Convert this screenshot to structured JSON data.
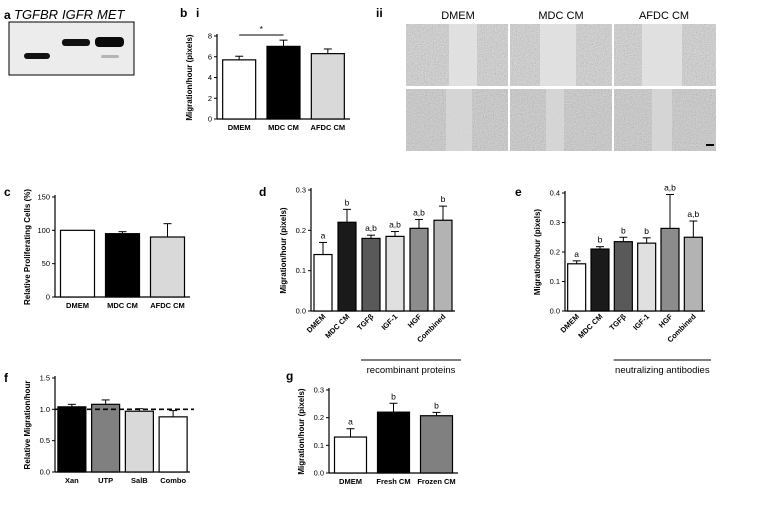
{
  "panel_a": {
    "label": "a",
    "genes": [
      "TGFBR",
      "IGFR",
      "MET"
    ]
  },
  "panel_b": {
    "label": "b",
    "sub_i": "i",
    "sub_ii": "ii",
    "conditions": [
      "DMEM",
      "MDC CM",
      "AFDC CM"
    ]
  },
  "chart_data": [
    {
      "id": "bi",
      "type": "bar",
      "categories": [
        "DMEM",
        "MDC CM",
        "AFDC CM"
      ],
      "values": [
        5.7,
        7.0,
        6.3
      ],
      "errors": [
        0.35,
        0.6,
        0.45
      ],
      "colors": [
        "#ffffff",
        "#000000",
        "#d9d9d9"
      ],
      "ylabel": "Migration/hour (pixels)",
      "ylim": [
        0,
        8
      ],
      "yticks": [
        0,
        2,
        4,
        6,
        8
      ],
      "tick_decimals": 0,
      "letters": [
        "",
        "",
        ""
      ],
      "significance": {
        "from": 0,
        "to": 1,
        "label": "*"
      }
    },
    {
      "id": "c",
      "label": "c",
      "type": "bar",
      "categories": [
        "DMEM",
        "MDC CM",
        "AFDC CM"
      ],
      "values": [
        100,
        95,
        90
      ],
      "errors": [
        0,
        3,
        20
      ],
      "colors": [
        "#ffffff",
        "#000000",
        "#d9d9d9"
      ],
      "ylabel": "Relative Proliferating Cells (%)",
      "ylim": [
        0,
        150
      ],
      "yticks": [
        0,
        50,
        100,
        150
      ],
      "tick_decimals": 0,
      "letters": [
        "",
        "",
        ""
      ]
    },
    {
      "id": "d",
      "label": "d",
      "type": "bar",
      "categories": [
        "DMEM",
        "MDC CM",
        "TGFβ",
        "IGF-1",
        "HGF",
        "Combined"
      ],
      "values": [
        0.14,
        0.22,
        0.18,
        0.185,
        0.205,
        0.225
      ],
      "errors": [
        0.03,
        0.032,
        0.008,
        0.012,
        0.022,
        0.035
      ],
      "colors": [
        "#ffffff",
        "#1a1a1a",
        "#595959",
        "#e0e0e0",
        "#8c8c8c",
        "#b3b3b3"
      ],
      "ylabel": "Migration/hour (pixels)",
      "ylim": [
        0,
        0.3
      ],
      "yticks": [
        0.0,
        0.1,
        0.2,
        0.3
      ],
      "tick_decimals": 1,
      "letters": [
        "a",
        "b",
        "a,b",
        "a,b",
        "a,b",
        "b"
      ],
      "group": {
        "label": "recombinant proteins",
        "from": 2,
        "to": 5
      }
    },
    {
      "id": "e",
      "label": "e",
      "type": "bar",
      "categories": [
        "DMEM",
        "MDC CM",
        "TGFβ",
        "IGF-1",
        "HGF",
        "Combined"
      ],
      "values": [
        0.16,
        0.21,
        0.235,
        0.23,
        0.28,
        0.25
      ],
      "errors": [
        0.01,
        0.008,
        0.015,
        0.018,
        0.115,
        0.055
      ],
      "colors": [
        "#ffffff",
        "#1a1a1a",
        "#595959",
        "#e0e0e0",
        "#8c8c8c",
        "#b3b3b3"
      ],
      "ylabel": "Migration/hour (pixels)",
      "ylim": [
        0,
        0.4
      ],
      "yticks": [
        0.0,
        0.1,
        0.2,
        0.3,
        0.4
      ],
      "tick_decimals": 1,
      "letters": [
        "a",
        "b",
        "b",
        "b",
        "a,b",
        "a,b"
      ],
      "group": {
        "label": "neutralizing antibodies",
        "from": 2,
        "to": 5
      }
    },
    {
      "id": "f",
      "label": "f",
      "type": "bar",
      "categories": [
        "Xan",
        "UTP",
        "SalB",
        "Combo"
      ],
      "values": [
        1.04,
        1.08,
        0.97,
        0.88
      ],
      "errors": [
        0.04,
        0.07,
        0.04,
        0.1
      ],
      "colors": [
        "#000000",
        "#808080",
        "#d9d9d9",
        "#ffffff"
      ],
      "ylabel": "Relative Migration/hour",
      "ylim": [
        0,
        1.5
      ],
      "yticks": [
        0.0,
        0.5,
        1.0,
        1.5
      ],
      "tick_decimals": 1,
      "letters": [
        "",
        "",
        "",
        ""
      ],
      "reference_line": 1.0
    },
    {
      "id": "g",
      "label": "g",
      "type": "bar",
      "categories": [
        "DMEM",
        "Fresh CM",
        "Frozen CM"
      ],
      "values": [
        0.13,
        0.22,
        0.207
      ],
      "errors": [
        0.03,
        0.032,
        0.012
      ],
      "colors": [
        "#ffffff",
        "#000000",
        "#808080"
      ],
      "ylabel": "Migration/hour (pixels)",
      "ylim": [
        0,
        0.3
      ],
      "yticks": [
        0.0,
        0.1,
        0.2,
        0.3
      ],
      "tick_decimals": 1,
      "letters": [
        "a",
        "b",
        "b"
      ]
    }
  ]
}
